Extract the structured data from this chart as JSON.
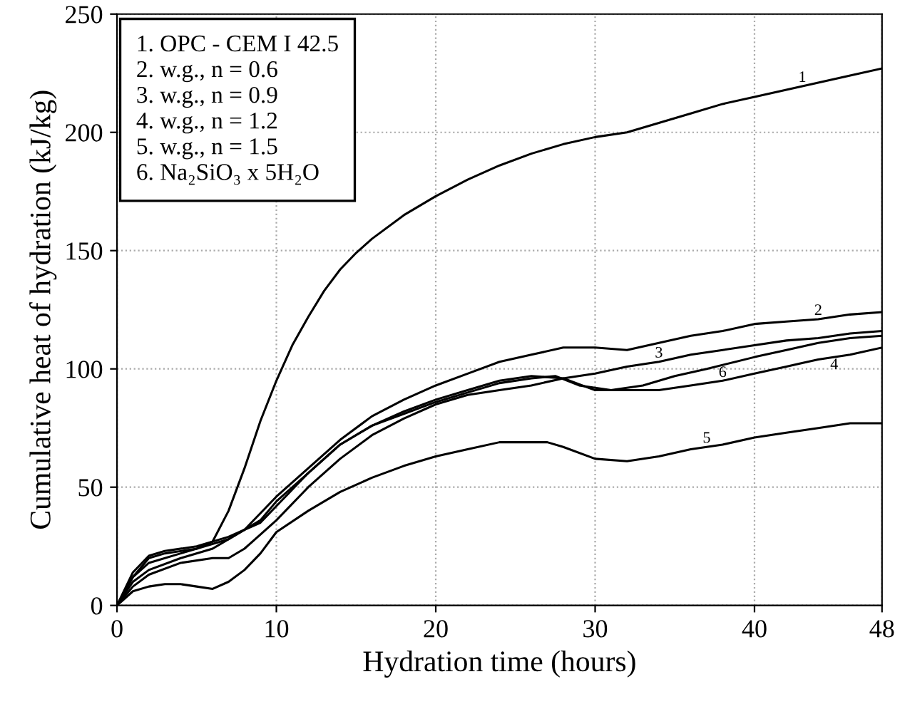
{
  "chart_data": {
    "type": "line",
    "xlabel": "Hydration time (hours)",
    "ylabel": "Cumulative heat of hydration (kJ/kg)",
    "xlim": [
      0,
      48
    ],
    "ylim": [
      0,
      250
    ],
    "xticks": [
      0,
      10,
      20,
      30,
      40,
      48
    ],
    "yticks": [
      0,
      50,
      100,
      150,
      200,
      250
    ],
    "grid": true,
    "line_style": "solid",
    "marker": "none",
    "annotations": [
      "1. OPC - CEM I 42.5",
      "2. w.g., n = 0.6",
      "3. w.g., n = 0.9",
      "4. w.g., n = 1.2",
      "5. w.g., n = 1.5",
      "6. Na₂SiO₃ x 5H₂O"
    ],
    "series": [
      {
        "name": "1",
        "color": "#000000",
        "x": [
          0,
          1,
          2,
          4,
          5,
          6,
          7,
          8,
          9,
          10,
          11,
          12,
          13,
          14,
          15,
          16,
          18,
          20,
          22,
          24,
          26,
          28,
          30,
          32,
          34,
          36,
          38,
          40,
          42,
          44,
          46,
          48
        ],
        "values": [
          0,
          12,
          18,
          22,
          24,
          27,
          40,
          58,
          78,
          95,
          110,
          122,
          133,
          142,
          149,
          155,
          165,
          173,
          180,
          186,
          191,
          195,
          198,
          200,
          204,
          208,
          212,
          215,
          218,
          221,
          224,
          227
        ]
      },
      {
        "name": "2",
        "color": "#000000",
        "x": [
          0,
          1,
          2,
          4,
          6,
          8,
          10,
          12,
          14,
          16,
          18,
          20,
          22,
          24,
          26,
          28,
          30,
          32,
          34,
          36,
          38,
          40,
          42,
          44,
          46,
          48
        ],
        "values": [
          0,
          10,
          15,
          20,
          24,
          32,
          46,
          58,
          70,
          80,
          87,
          93,
          98,
          103,
          106,
          109,
          109,
          108,
          111,
          114,
          116,
          119,
          120,
          121,
          123,
          124
        ]
      },
      {
        "name": "3",
        "color": "#000000",
        "x": [
          0,
          1,
          2,
          3,
          5,
          7,
          9,
          10,
          12,
          14,
          16,
          18,
          20,
          22,
          24,
          26,
          28,
          30,
          32,
          34,
          36,
          38,
          40,
          42,
          44,
          46,
          48
        ],
        "values": [
          0,
          12,
          20,
          22,
          24,
          28,
          36,
          44,
          56,
          68,
          76,
          82,
          87,
          91,
          95,
          97,
          96,
          98,
          101,
          103,
          106,
          108,
          110,
          112,
          113,
          115,
          116
        ]
      },
      {
        "name": "4",
        "color": "#000000",
        "x": [
          0,
          1,
          2,
          4,
          6,
          7,
          8,
          9,
          10,
          12,
          14,
          16,
          18,
          20,
          22,
          24,
          26,
          28,
          30,
          32,
          34,
          36,
          38,
          40,
          42,
          44,
          46,
          48
        ],
        "values": [
          0,
          8,
          13,
          18,
          20,
          20,
          24,
          30,
          36,
          50,
          62,
          72,
          79,
          85,
          89,
          91,
          93,
          96,
          91,
          91,
          91,
          93,
          95,
          98,
          101,
          104,
          106,
          109
        ]
      },
      {
        "name": "5",
        "color": "#000000",
        "x": [
          0,
          1,
          2,
          3,
          4,
          5,
          6,
          7,
          8,
          9,
          10,
          12,
          14,
          16,
          18,
          20,
          22,
          24,
          26,
          27,
          28,
          30,
          32,
          34,
          36,
          38,
          40,
          42,
          44,
          46,
          48
        ],
        "values": [
          0,
          6,
          8,
          9,
          9,
          8,
          7,
          10,
          15,
          22,
          31,
          40,
          48,
          54,
          59,
          63,
          66,
          69,
          69,
          69,
          67,
          62,
          61,
          63,
          66,
          68,
          71,
          73,
          75,
          77,
          77
        ]
      },
      {
        "name": "6",
        "color": "#000000",
        "x": [
          0,
          1,
          2,
          3,
          5,
          7,
          9,
          10,
          12,
          14,
          16,
          18,
          20,
          22,
          24,
          26,
          27.5,
          29,
          31,
          33,
          35,
          37,
          40,
          42,
          44,
          46,
          48
        ],
        "values": [
          0,
          14,
          21,
          23,
          25,
          29,
          35,
          42,
          56,
          68,
          76,
          81,
          86,
          90,
          94,
          96,
          97,
          93,
          91,
          93,
          97,
          100,
          105,
          108,
          111,
          113,
          114
        ]
      }
    ]
  }
}
